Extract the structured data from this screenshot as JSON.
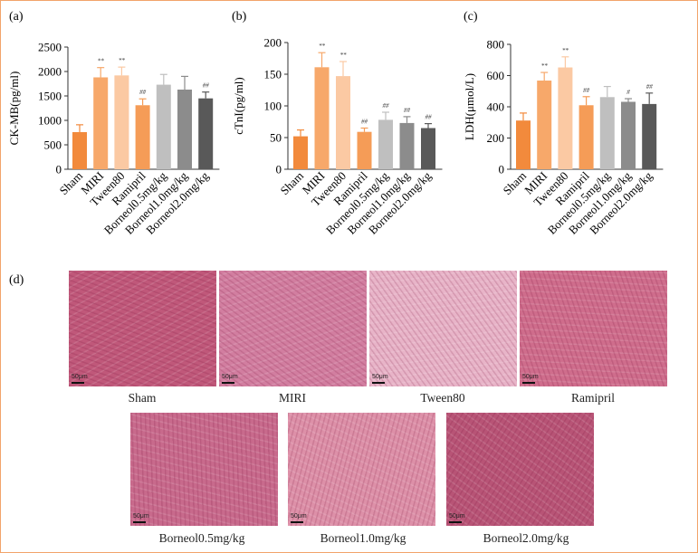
{
  "panels": {
    "a": "(a)",
    "b": "(b)",
    "c": "(c)",
    "d": "(d)"
  },
  "chart_data": [
    {
      "type": "bar",
      "panel": "(a)",
      "ylabel": "CK-MB(pg/ml)",
      "ylim": [
        0,
        2500
      ],
      "yticks": [
        0,
        500,
        1000,
        1500,
        2000,
        2500
      ],
      "categories": [
        "Sham",
        "MIRI",
        "Tween80",
        "Ramipril",
        "Borneol0.5mg/kg",
        "Borneol1.0mg/kg",
        "Borneol2.0mg/kg"
      ],
      "values": [
        760,
        1880,
        1920,
        1310,
        1730,
        1630,
        1450
      ],
      "errors": [
        150,
        200,
        170,
        130,
        210,
        270,
        130
      ],
      "significance": [
        "",
        "**",
        "**",
        "##",
        "",
        "",
        "##"
      ],
      "colors": [
        "#f28a3c",
        "#f7a86a",
        "#fbc9a3",
        "#f59c57",
        "#bfbfbf",
        "#8c8c8c",
        "#595959"
      ]
    },
    {
      "type": "bar",
      "panel": "(b)",
      "ylabel": "cTnI(pg/ml)",
      "ylim": [
        0,
        200
      ],
      "yticks": [
        0,
        50,
        100,
        150,
        200
      ],
      "categories": [
        "Sham",
        "MIRI",
        "Tween80",
        "Ramipril",
        "Borneol0.5mg/kg",
        "Borneol1.0mg/kg",
        "Borneol2.0mg/kg"
      ],
      "values": [
        52,
        161,
        147,
        59,
        78,
        73,
        65
      ],
      "errors": [
        10,
        23,
        23,
        6,
        12,
        10,
        7
      ],
      "significance": [
        "",
        "**",
        "**",
        "##",
        "##",
        "##",
        "##"
      ],
      "colors": [
        "#f28a3c",
        "#f7a86a",
        "#fbc9a3",
        "#f59c57",
        "#bfbfbf",
        "#8c8c8c",
        "#595959"
      ]
    },
    {
      "type": "bar",
      "panel": "(c)",
      "ylabel": "LDH(μmol/L)",
      "ylim": [
        0,
        800
      ],
      "yticks": [
        0,
        200,
        400,
        600,
        800
      ],
      "categories": [
        "Sham",
        "MIRI",
        "Tween80",
        "Ramipril",
        "Borneol0.5mg/kg",
        "Borneol1.0mg/kg",
        "Borneol2.0mg/kg"
      ],
      "values": [
        312,
        568,
        652,
        410,
        462,
        432,
        418
      ],
      "errors": [
        48,
        52,
        68,
        55,
        68,
        20,
        70
      ],
      "significance": [
        "",
        "**",
        "**",
        "##",
        "",
        "#",
        "##"
      ],
      "colors": [
        "#f28a3c",
        "#f7a86a",
        "#fbc9a3",
        "#f59c57",
        "#bfbfbf",
        "#8c8c8c",
        "#595959"
      ]
    }
  ],
  "micrographs": [
    {
      "caption": "Sham",
      "scale": "50μm",
      "tint": "#c0587a"
    },
    {
      "caption": "MIRI",
      "scale": "50μm",
      "tint": "#d27ea0"
    },
    {
      "caption": "Tween80",
      "scale": "50μm",
      "tint": "#e8b4c8"
    },
    {
      "caption": "Ramipril",
      "scale": "50μm",
      "tint": "#cf6d8c"
    },
    {
      "caption": "Borneol0.5mg/kg",
      "scale": "50μm",
      "tint": "#c86a8c"
    },
    {
      "caption": "Borneol1.0mg/kg",
      "scale": "50μm",
      "tint": "#dd90a8"
    },
    {
      "caption": "Borneol2.0mg/kg",
      "scale": "50μm",
      "tint": "#b85476"
    }
  ]
}
